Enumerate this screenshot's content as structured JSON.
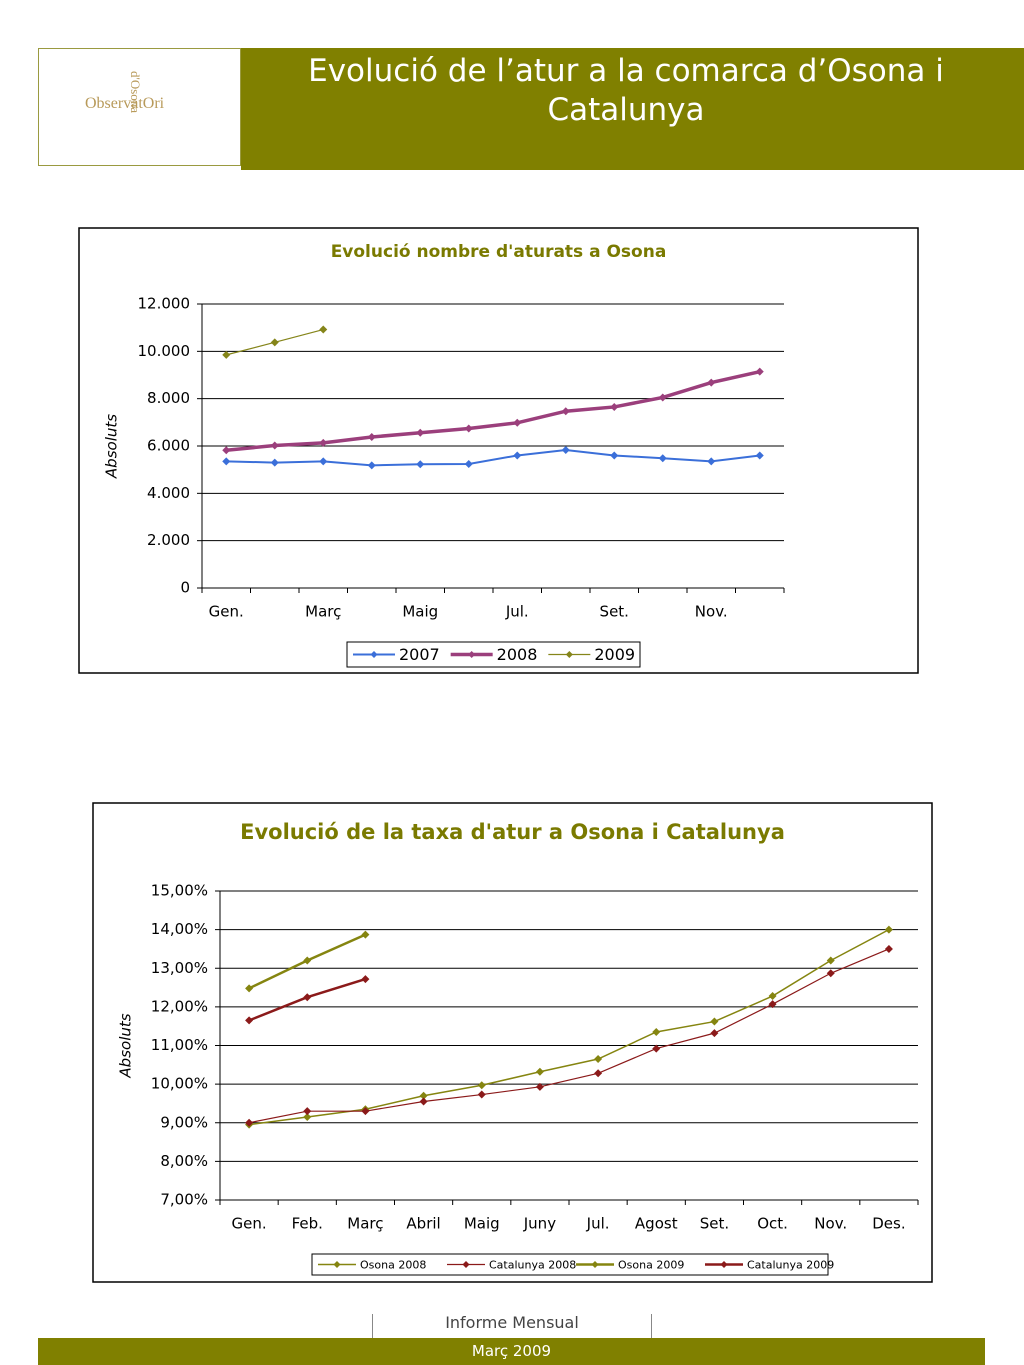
{
  "header": {
    "title": "Evolució de l’atur a la comarca d’Osona i Catalunya",
    "logo_name": "ObservatOri",
    "logo_place": "d'Osona"
  },
  "chart_data": [
    {
      "type": "line",
      "title": "Evolució nombre d'aturats a Osona",
      "y_label": "Absoluts",
      "categories": [
        "Gen.",
        null,
        "Març",
        null,
        "Maig",
        null,
        "Jul.",
        null,
        "Set.",
        null,
        "Nov.",
        null
      ],
      "series": [
        {
          "name": "2007",
          "color": "#3b6fd9",
          "values": [
            5350,
            5300,
            5350,
            5180,
            5230,
            5240,
            5600,
            5830,
            5600,
            5480,
            5350,
            5600
          ]
        },
        {
          "name": "2008",
          "color": "#9b3f7c",
          "values": [
            5820,
            6020,
            6130,
            6380,
            6560,
            6740,
            6980,
            7470,
            7650,
            8050,
            8680,
            9140
          ]
        },
        {
          "name": "2009",
          "color": "#85851a",
          "values": [
            9850,
            10380,
            10920,
            null,
            null,
            null,
            null,
            null,
            null,
            null,
            null,
            null
          ]
        }
      ],
      "ylim": [
        0,
        12000
      ],
      "yticks": [
        0,
        {
          "value": 2000,
          "label": "2.000"
        },
        {
          "value": 4000,
          "label": "4.000"
        },
        {
          "value": 6000,
          "label": "6.000"
        },
        {
          "value": 8000,
          "label": "8.000"
        },
        {
          "value": 10000,
          "label": "10.000"
        },
        {
          "value": 12000,
          "label": "12.000"
        }
      ],
      "grid": true,
      "legend": "bottom"
    },
    {
      "type": "line",
      "title": "Evolució de la taxa d'atur a Osona i Catalunya",
      "y_label": "Absoluts",
      "categories": [
        "Gen.",
        "Feb.",
        "Març",
        "Abril",
        "Maig",
        "Juny",
        "Jul.",
        "Agost",
        "Set.",
        "Oct.",
        "Nov.",
        "Des."
      ],
      "series": [
        {
          "name": "Osona 2008",
          "color": "#858510",
          "values": [
            8.95,
            9.15,
            9.35,
            9.7,
            9.97,
            10.32,
            10.65,
            11.35,
            11.62,
            12.28,
            13.2,
            14.0
          ]
        },
        {
          "name": "Catalunya 2008",
          "color": "#8b1a1a",
          "values": [
            9.0,
            9.3,
            9.3,
            9.55,
            9.73,
            9.93,
            10.28,
            10.92,
            11.32,
            12.07,
            12.87,
            13.5
          ]
        },
        {
          "name": "Osona 2009",
          "color": "#858510",
          "values": [
            12.48,
            13.2,
            13.87,
            null,
            null,
            null,
            null,
            null,
            null,
            null,
            null,
            null
          ]
        },
        {
          "name": "Catalunya 2009",
          "color": "#8b1a1a",
          "values": [
            11.65,
            12.25,
            12.72,
            null,
            null,
            null,
            null,
            null,
            null,
            null,
            null,
            null
          ]
        }
      ],
      "ylim": [
        7,
        15
      ],
      "yticks": [
        {
          "value": 7,
          "label": "7,00%"
        },
        {
          "value": 8,
          "label": "8,00%"
        },
        {
          "value": 9,
          "label": "9,00%"
        },
        {
          "value": 10,
          "label": "10,00%"
        },
        {
          "value": 11,
          "label": "11,00%"
        },
        {
          "value": 12,
          "label": "12,00%"
        },
        {
          "value": 13,
          "label": "13,00%"
        },
        {
          "value": 14,
          "label": "14,00%"
        },
        {
          "value": 15,
          "label": "15,00%"
        }
      ],
      "grid": true,
      "legend": "bottom"
    }
  ],
  "footer": {
    "report": "Informe Mensual",
    "date": "Març 2009"
  }
}
